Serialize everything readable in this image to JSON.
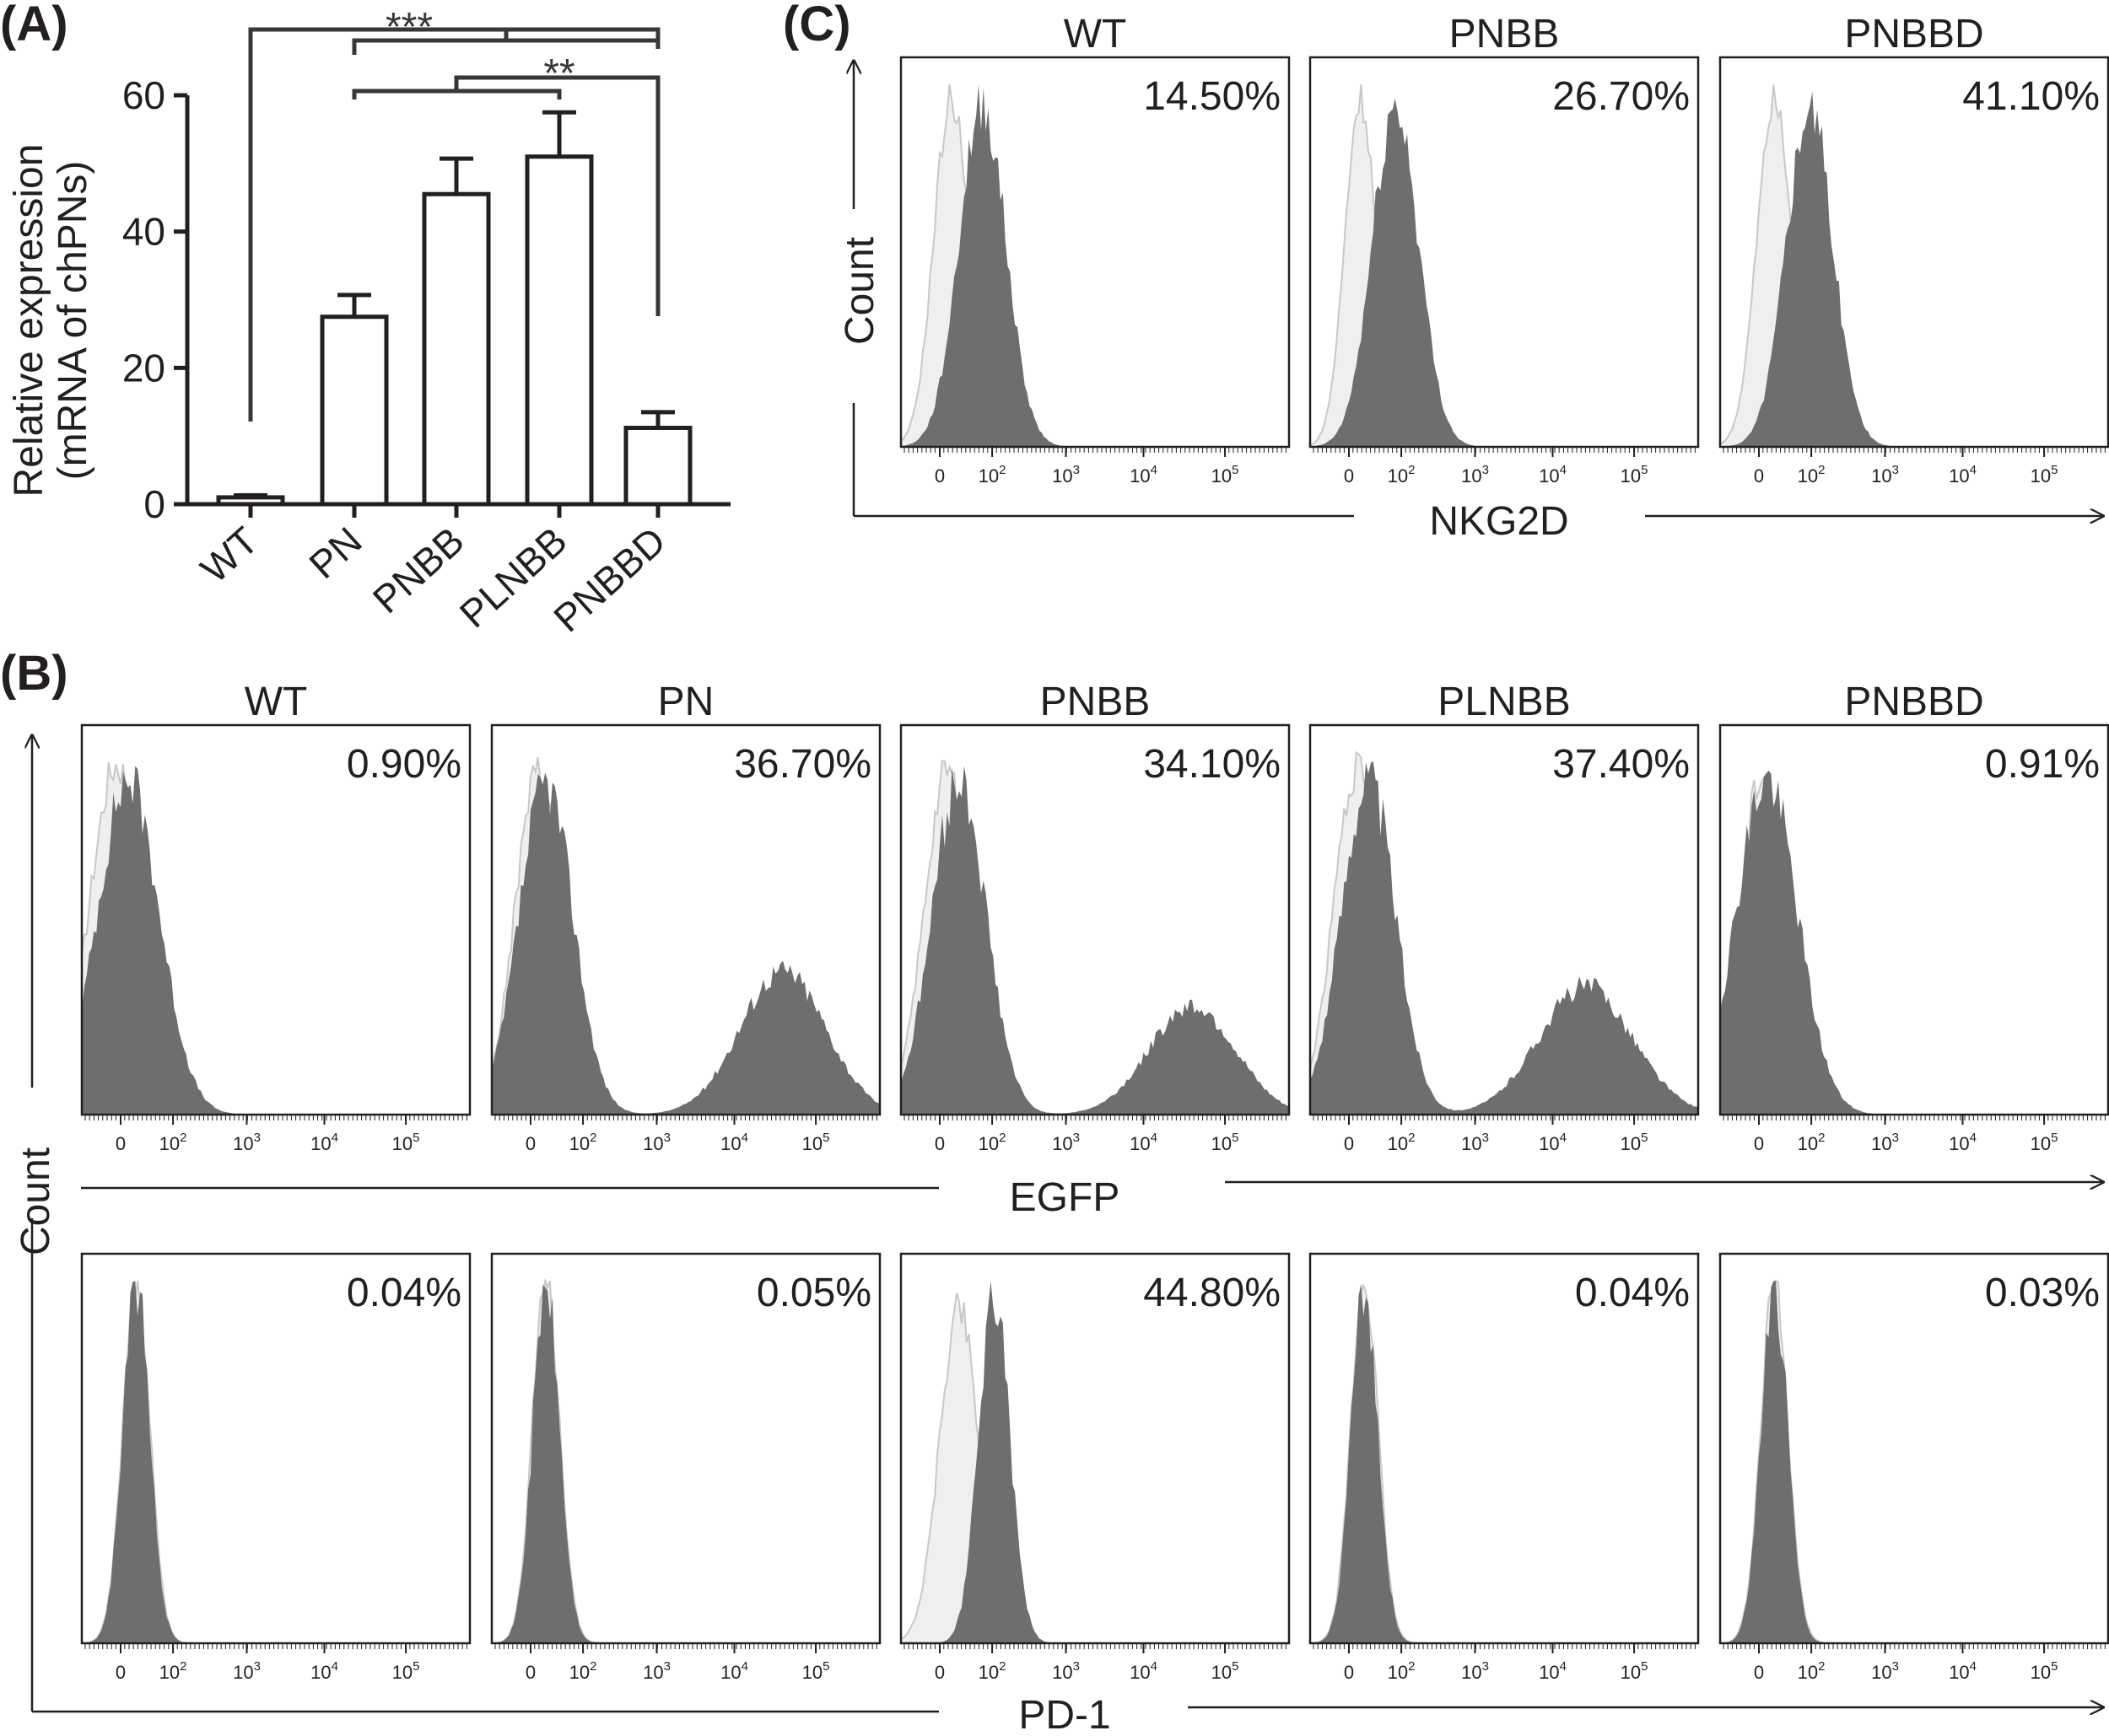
{
  "panel_labels": [
    "(A)",
    "(B)",
    "(C)"
  ],
  "chart_data": [
    {
      "panel": "(A)",
      "type": "bar",
      "ylabel_line1": "Relative expression",
      "ylabel_line2": "(mRNA of chPNs)",
      "categories": [
        "WT",
        "PN",
        "PNBB",
        "PLNBB",
        "PNBBD"
      ],
      "values": [
        1,
        27.5,
        45.5,
        51,
        11.2
      ],
      "errors": [
        0.3,
        3.2,
        5.2,
        6.5,
        2.3
      ],
      "ylim": [
        0,
        60
      ],
      "yticks": [
        "0",
        "20",
        "40",
        "60"
      ],
      "significance": [
        "***",
        "**"
      ]
    },
    {
      "panel": "(B)",
      "type": "area",
      "ylabel": "Count",
      "rows": [
        {
          "xlabel": "EGFP",
          "samples": [
            "WT",
            "PN",
            "PNBB",
            "PLNBB",
            "PNBBD"
          ],
          "percentages": [
            "0.90%",
            "36.70%",
            "34.10%",
            "37.40%",
            "0.91%"
          ]
        },
        {
          "xlabel": "PD-1",
          "percentages": [
            "0.04%",
            "0.05%",
            "44.80%",
            "0.04%",
            "0.03%"
          ]
        }
      ],
      "xticks": [
        "0",
        "10",
        "10",
        "10",
        "10"
      ],
      "xtick_exponents": [
        "",
        "2",
        "3",
        "4",
        "5"
      ]
    },
    {
      "panel": "(C)",
      "type": "area",
      "ylabel": "Count",
      "xlabel": "NKG2D",
      "samples": [
        "WT",
        "PNBB",
        "PNBBD"
      ],
      "percentages": [
        "14.50%",
        "26.70%",
        "41.10%"
      ],
      "xticks": [
        "0",
        "10",
        "10",
        "10",
        "10"
      ],
      "xtick_exponents": [
        "",
        "2",
        "3",
        "4",
        "5"
      ]
    }
  ],
  "colors": {
    "sample_fill": "#6e6e6e",
    "control_fill": "#efefef",
    "control_stroke": "#c8c8c8",
    "axis": "#231f20",
    "bracket": "#3a3536"
  }
}
